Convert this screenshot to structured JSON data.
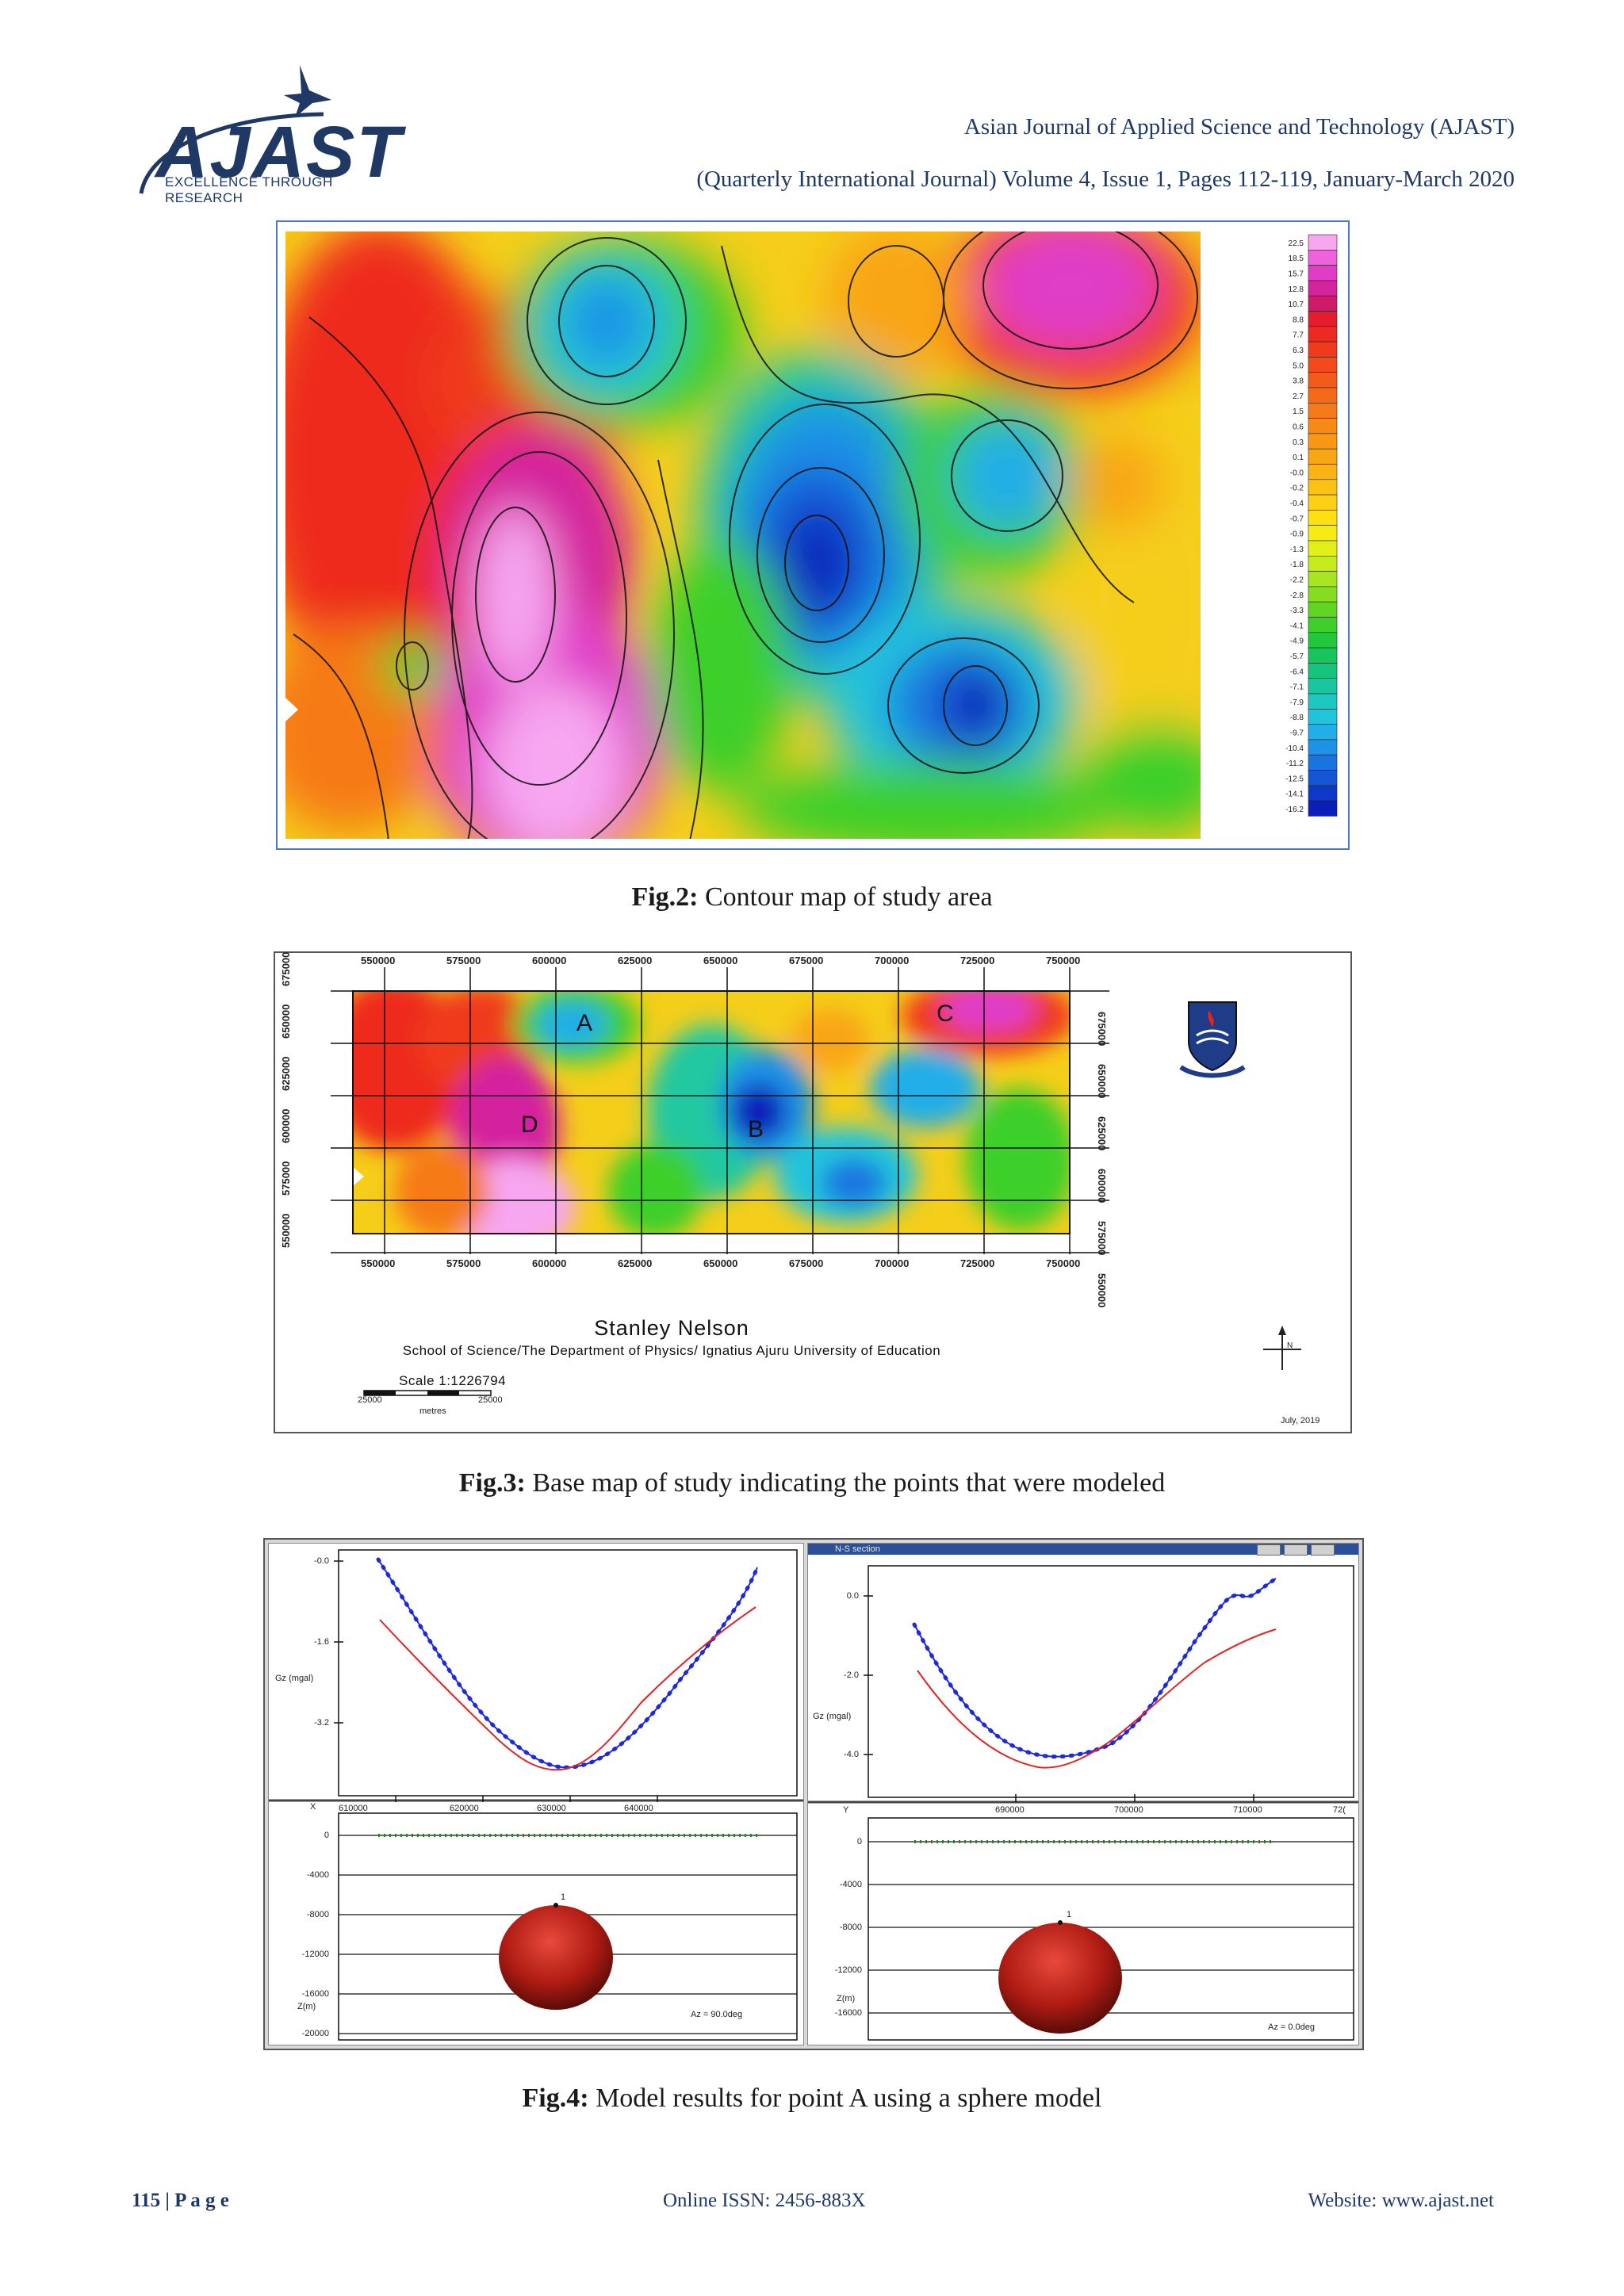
{
  "header": {
    "logo_text": "AJAST",
    "logo_tagline": "EXCELLENCE THROUGH RESEARCH",
    "journal_name": "Asian Journal of Applied Science and Technology (AJAST)",
    "issue_line": "(Quarterly International Journal) Volume 4, Issue 1, Pages 112-119, January-March 2020"
  },
  "fig2": {
    "caption_label": "Fig.2:",
    "caption_text": " Contour map of study area",
    "legend_values": [
      "22.5",
      "18.5",
      "15.7",
      "12.8",
      "10.7",
      "8.8",
      "7.7",
      "6.3",
      "5.0",
      "3.8",
      "2.7",
      "1.5",
      "0.6",
      "0.3",
      "0.1",
      "-0.0",
      "-0.2",
      "-0.4",
      "-0.7",
      "-0.9",
      "-1.3",
      "-1.8",
      "-2.2",
      "-2.8",
      "-3.3",
      "-4.1",
      "-4.9",
      "-5.7",
      "-6.4",
      "-7.1",
      "-7.9",
      "-8.8",
      "-9.7",
      "-10.4",
      "-11.2",
      "-12.5",
      "-14.1",
      "-16.2"
    ],
    "legend_colors": [
      "#f7a6f0",
      "#ee62dc",
      "#e03cc8",
      "#d4239e",
      "#cf1a6a",
      "#e51c2d",
      "#ec2a22",
      "#ef3a1e",
      "#f24a1c",
      "#f45a1a",
      "#f56a18",
      "#f67a17",
      "#f78a16",
      "#f89815",
      "#f9a614",
      "#fab314",
      "#fbc114",
      "#fcd014",
      "#fde014",
      "#f6ec14",
      "#e2ef18",
      "#c6ec1c",
      "#a6e51f",
      "#84dd21",
      "#62d523",
      "#3ecf2a",
      "#22c83b",
      "#18c45c",
      "#16c47e",
      "#18c6a0",
      "#1cc8c0",
      "#22c4dc",
      "#22aee8",
      "#1e92e6",
      "#1a74e0",
      "#1456d6",
      "#0e38c8",
      "#0a1eb8"
    ]
  },
  "fig3": {
    "caption_label": "Fig.3:",
    "caption_text": " Base map of study indicating the points that were modeled",
    "x_ticks": [
      "550000",
      "575000",
      "600000",
      "625000",
      "650000",
      "675000",
      "700000",
      "725000",
      "750000"
    ],
    "y_ticks_left": [
      "675000",
      "650000",
      "625000",
      "600000",
      "575000",
      "550000"
    ],
    "y_ticks_right": [
      "675000",
      "650000",
      "625000",
      "600000",
      "575000",
      "550000"
    ],
    "point_labels": [
      "A",
      "B",
      "C",
      "D"
    ],
    "author": "Stanley Nelson",
    "affiliation": "School of Science/The Department of Physics/ Ignatius Ajuru University of Education",
    "scale_text": "Scale 1:1226794",
    "scale_left": "25000",
    "scale_right": "25000",
    "scale_units": "metres",
    "north": "N",
    "date": "July, 2019"
  },
  "fig4": {
    "caption_label": "Fig.4:",
    "caption_text": " Model results for point A using a sphere model",
    "left": {
      "gz_ticks": [
        "-0.0",
        "-1.6",
        "-3.2"
      ],
      "gz_label": "Gz (mgal)",
      "x_axis_label": "X",
      "x_ticks": [
        "610000",
        "620000",
        "630000",
        "640000"
      ],
      "depth_ticks": [
        "0",
        "-4000",
        "-8000",
        "-12000",
        "-16000",
        "-20000"
      ],
      "depth_label": "Z(m)",
      "az_text": "Az = 90.0deg",
      "body_label": "1"
    },
    "right": {
      "window_title": "N-S section",
      "gz_ticks": [
        "0.0",
        "-2.0",
        "-4.0"
      ],
      "gz_label": "Gz (mgal)",
      "x_axis_label": "Y",
      "x_ticks": [
        "690000",
        "700000",
        "710000",
        "72("
      ],
      "depth_ticks": [
        "0",
        "-4000",
        "-8000",
        "-12000",
        "-16000"
      ],
      "depth_label": "Z(m)",
      "az_text": "Az = 0.0deg",
      "body_label": "1"
    }
  },
  "footer": {
    "page": "115 | P a g e",
    "issn": "Online ISSN: 2456-883X",
    "website": "Website: www.ajast.net"
  }
}
